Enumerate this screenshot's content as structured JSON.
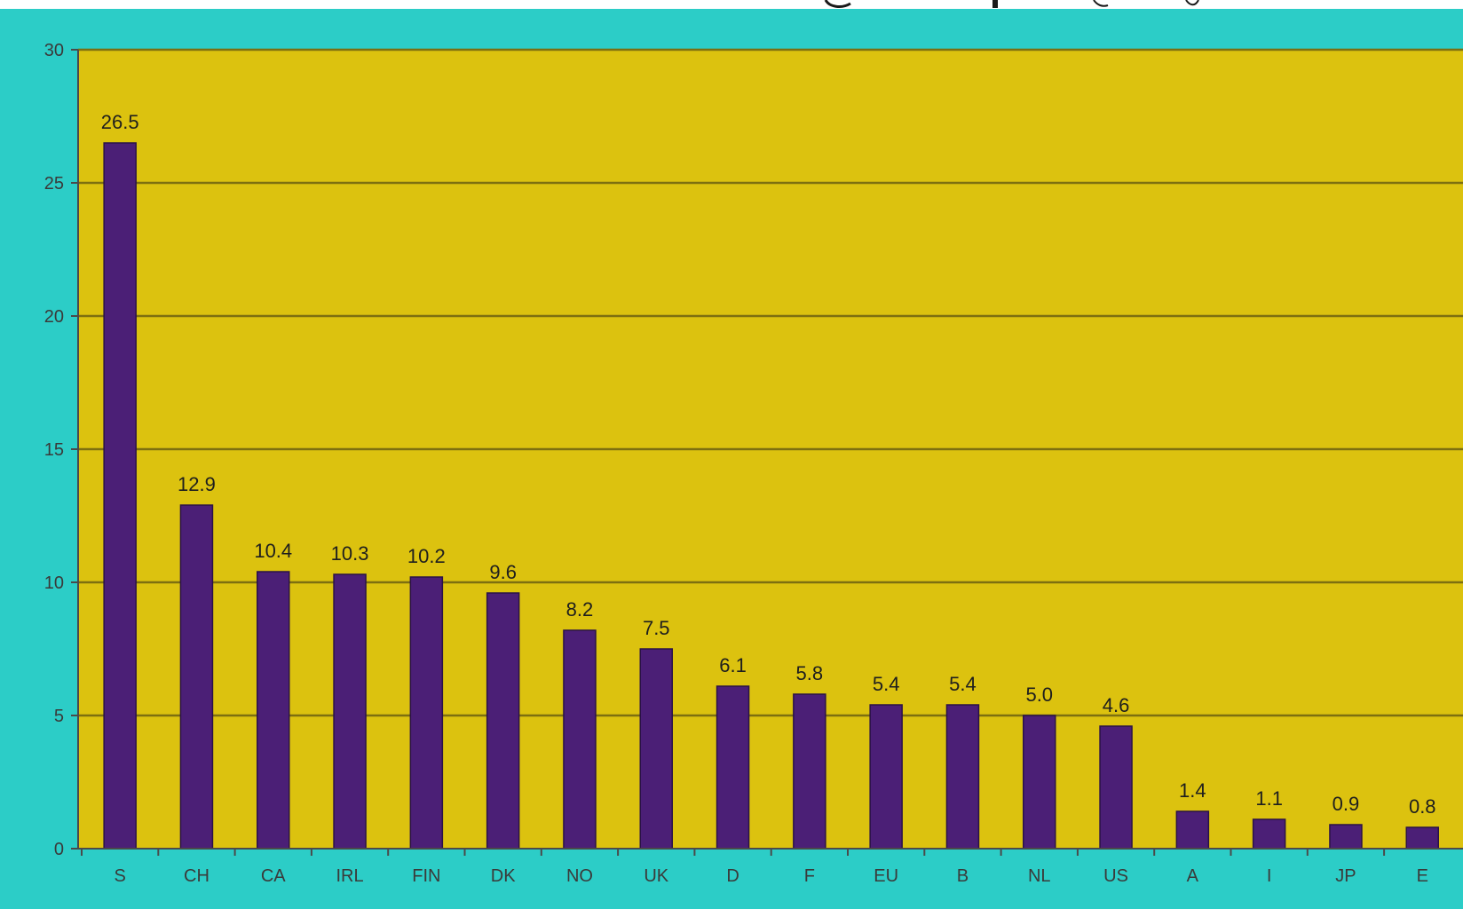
{
  "colors": {
    "frame_bg": "#2ccdc7",
    "plot_bg": "#dcc20f",
    "bar": "#4b1f76",
    "bar_edge": "#2b1247",
    "gridline": "#7d6f10",
    "axis": "#4a4a4a",
    "title_ink": "#1a1a1a"
  },
  "chart_data": {
    "type": "bar",
    "title": "",
    "xlabel": "",
    "ylabel": "",
    "categories": [
      "S",
      "CH",
      "CA",
      "IRL",
      "FIN",
      "DK",
      "NO",
      "UK",
      "D",
      "F",
      "EU",
      "B",
      "NL",
      "US",
      "A",
      "I",
      "JP",
      "E"
    ],
    "values": [
      26.5,
      12.9,
      10.4,
      10.3,
      10.2,
      9.6,
      8.2,
      7.5,
      6.1,
      5.8,
      5.4,
      5.4,
      5.0,
      4.6,
      1.4,
      1.1,
      0.9,
      0.8
    ],
    "data_labels": [
      "26.5",
      "12.9",
      "10.4",
      "10.3",
      "10.2",
      "9.6",
      "8.2",
      "7.5",
      "6.1",
      "5.8",
      "5.4",
      "5.4",
      "5.0",
      "4.6",
      "1.4",
      "1.1",
      "0.9",
      "0.8"
    ],
    "ylim": [
      0,
      30
    ],
    "yticks": [
      0,
      5,
      10,
      15,
      20,
      25,
      30
    ],
    "ytick_labels": [
      "0",
      "5",
      "10",
      "15",
      "20",
      "25",
      "30"
    ],
    "grid": true,
    "legend": "none"
  }
}
